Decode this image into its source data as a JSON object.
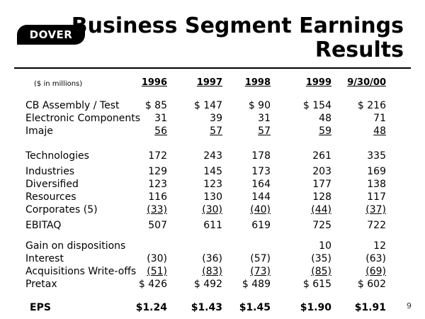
{
  "logo": {
    "text": "DOVER"
  },
  "title": {
    "line1": "Business Segment Earnings",
    "line2": "Results"
  },
  "page_number": "9",
  "table": {
    "units_label": "($ in millions)",
    "columns": [
      "1996",
      "1997",
      "1998",
      "1999",
      "9/30/00"
    ],
    "rows": [
      {
        "label": "CB Assembly / Test",
        "values": [
          "$ 85",
          "$ 147",
          "$ 90",
          "$ 154",
          "$ 216"
        ]
      },
      {
        "label": "Electronic Components",
        "values": [
          "31",
          "39",
          "31",
          "48",
          "71"
        ]
      },
      {
        "label": "Imaje",
        "values": [
          "56",
          "57",
          "57",
          "59",
          "48"
        ]
      },
      {
        "label": "Technologies",
        "values": [
          "172",
          "243",
          "178",
          "261",
          "335"
        ]
      },
      {
        "label": "Industries",
        "values": [
          "129",
          "145",
          "173",
          "203",
          "169"
        ]
      },
      {
        "label": "Diversified",
        "values": [
          "123",
          "123",
          "164",
          "177",
          "138"
        ]
      },
      {
        "label": "Resources",
        "values": [
          "116",
          "130",
          "144",
          "128",
          "117"
        ]
      },
      {
        "label": "Corporates (5)",
        "values": [
          "(33)",
          "(30)",
          "(40)",
          "(44)",
          "(37)"
        ]
      },
      {
        "label": "EBITAQ",
        "values": [
          "507",
          "611",
          "619",
          "725",
          "722"
        ]
      },
      {
        "label": "Gain on dispositions",
        "values": [
          "",
          "",
          "",
          "10",
          "12"
        ]
      },
      {
        "label": "Interest",
        "values": [
          "(30)",
          "(36)",
          "(57)",
          "(35)",
          "(63)"
        ]
      },
      {
        "label": "Acquisitions Write-offs",
        "values": [
          "(51)",
          "(83)",
          "(73)",
          "(85)",
          "(69)"
        ]
      },
      {
        "label": "Pretax",
        "values": [
          "$ 426",
          "$ 492",
          "$ 489",
          "$ 615",
          "$ 602"
        ]
      },
      {
        "label": "EPS",
        "values": [
          "$1.24",
          "$1.43",
          "$1.45",
          "$1.90",
          "$1.91"
        ]
      }
    ]
  }
}
